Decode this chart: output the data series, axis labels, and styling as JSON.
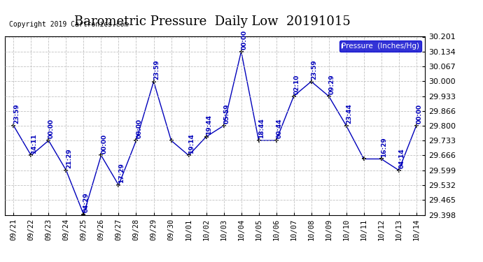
{
  "title": "Barometric Pressure  Daily Low  20191015",
  "copyright": "Copyright 2019 Cartronics.com",
  "legend_label": "Pressure  (Inches/Hg)",
  "dates": [
    "09/21",
    "09/22",
    "09/23",
    "09/24",
    "09/25",
    "09/26",
    "09/27",
    "09/28",
    "09/29",
    "09/30",
    "10/01",
    "10/02",
    "10/03",
    "10/04",
    "10/05",
    "10/06",
    "10/07",
    "10/08",
    "10/09",
    "10/10",
    "10/11",
    "10/12",
    "10/13",
    "10/14"
  ],
  "values": [
    29.8,
    29.666,
    29.733,
    29.599,
    29.4,
    29.666,
    29.532,
    29.733,
    29.999,
    29.733,
    29.666,
    29.75,
    29.8,
    30.134,
    29.733,
    29.733,
    29.933,
    29.999,
    29.933,
    29.8,
    29.65,
    29.65,
    29.599,
    29.8
  ],
  "times": [
    "23:59",
    "14:11",
    "00:00",
    "21:29",
    "04:29",
    "00:00",
    "17:29",
    "00:00",
    "23:59",
    "",
    "19:14",
    "19:44",
    "05:59",
    "00:00",
    "18:44",
    "00:44",
    "02:10",
    "23:59",
    "09:29",
    "23:44",
    "",
    "16:29",
    "04:14",
    "00:00"
  ],
  "ylim_min": 29.398,
  "ylim_max": 30.201,
  "ytick_values": [
    29.398,
    29.465,
    29.532,
    29.599,
    29.666,
    29.733,
    29.8,
    29.866,
    29.933,
    30.0,
    30.067,
    30.134,
    30.201
  ],
  "line_color": "#0000bb",
  "marker_color": "#000000",
  "bg_color": "#ffffff",
  "grid_color": "#bbbbbb",
  "title_fontsize": 13,
  "annot_fontsize": 6.5,
  "legend_bg": "#0000cc",
  "legend_fg": "#ffffff"
}
